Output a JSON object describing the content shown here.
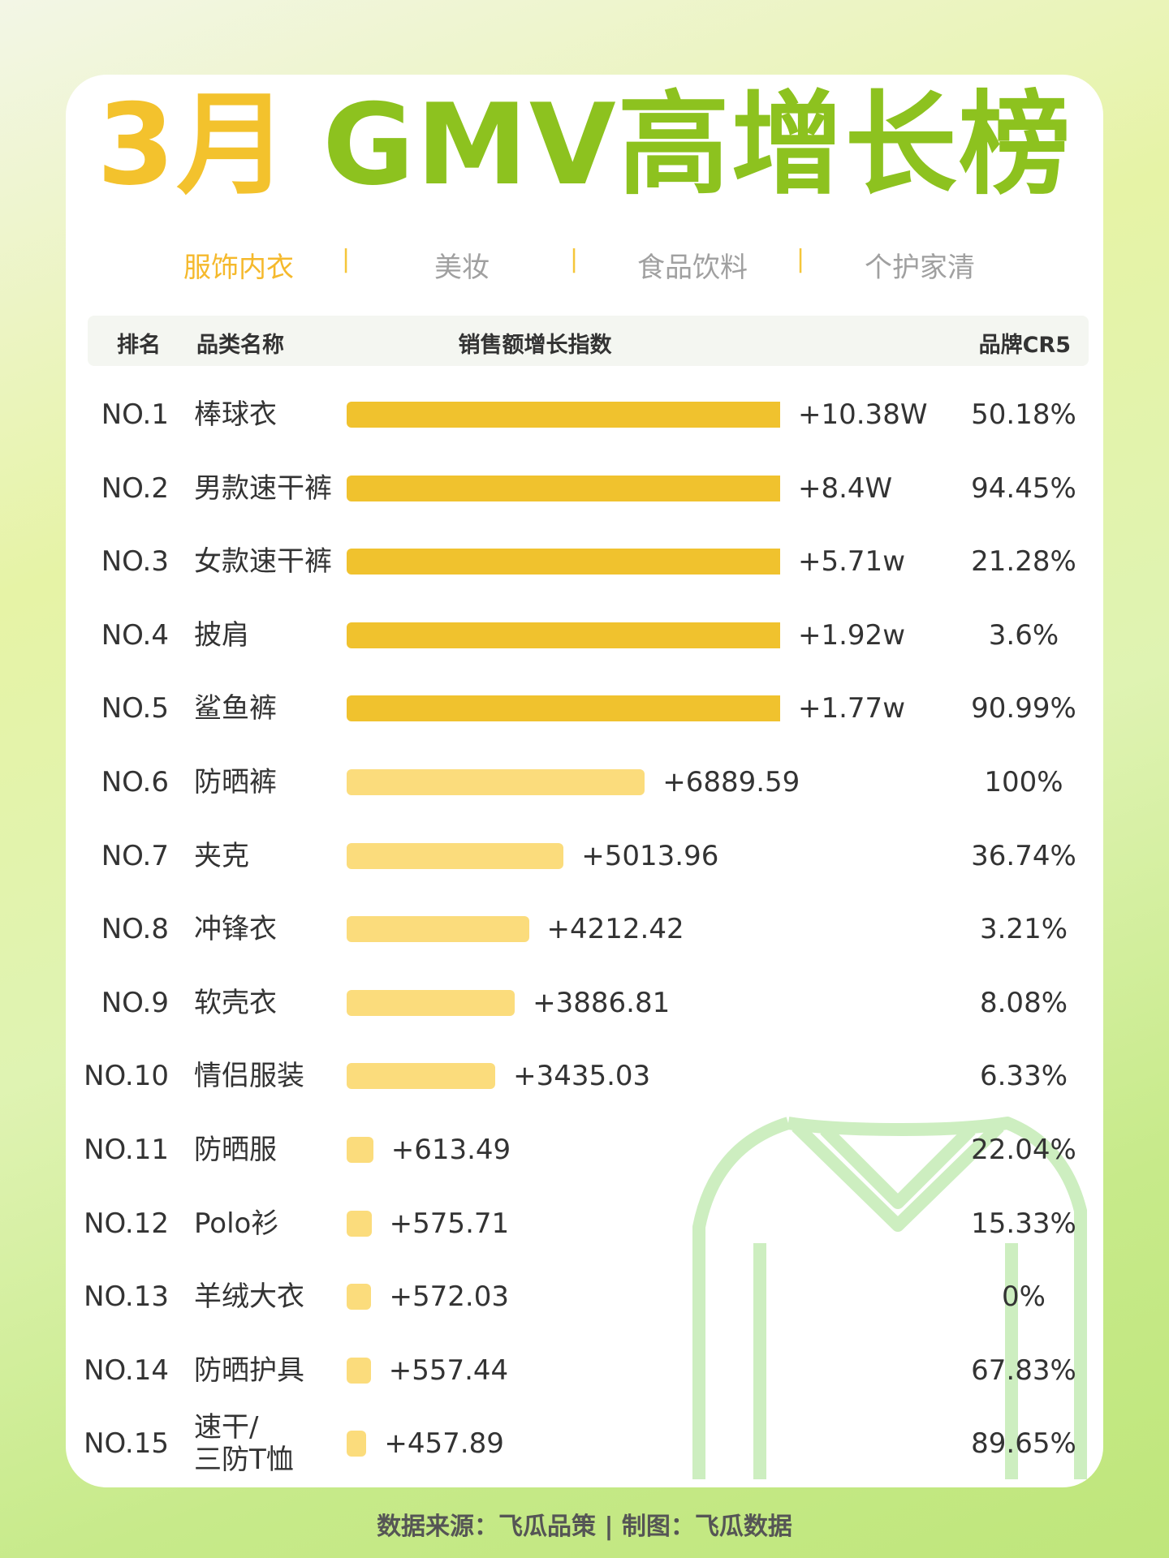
{
  "header": {
    "title_month": "3月",
    "title_main": "GMV高增长榜"
  },
  "tabs": {
    "items": [
      "服饰内衣",
      "美妆",
      "食品饮料",
      "个护家清"
    ],
    "separator": "|",
    "active_color": "#f5b92c"
  },
  "chart_data": {
    "type": "ranking-bar",
    "columns": [
      "排名",
      "品类名称",
      "销售额增长指数",
      "品牌CR5"
    ],
    "rows": [
      {
        "rank": "NO.1",
        "name": [
          "棒球衣"
        ],
        "growth": 103800,
        "growth_label": "+10.38W",
        "cr5": "50.18%",
        "color": "#f0c22e"
      },
      {
        "rank": "NO.2",
        "name": [
          "男款速干裤"
        ],
        "growth": 84000,
        "growth_label": "+8.4W",
        "cr5": "94.45%",
        "color": "#f0c22e"
      },
      {
        "rank": "NO.3",
        "name": [
          "女款速干裤"
        ],
        "growth": 57100,
        "growth_label": "+5.71w",
        "cr5": "21.28%",
        "color": "#f0c22e"
      },
      {
        "rank": "NO.4",
        "name": [
          "披肩"
        ],
        "growth": 19200,
        "growth_label": "+1.92w",
        "cr5": "3.6%",
        "color": "#f0c22e"
      },
      {
        "rank": "NO.5",
        "name": [
          "鲨鱼裤"
        ],
        "growth": 17700,
        "growth_label": "+1.77w",
        "cr5": "90.99%",
        "color": "#f0c22e"
      },
      {
        "rank": "NO.6",
        "name": [
          "防晒裤"
        ],
        "growth": 6889.59,
        "cr5": "100%",
        "color": "#fbdc7c"
      },
      {
        "rank": "NO.7",
        "name": [
          "夹克"
        ],
        "growth": 5013.96,
        "cr5": "36.74%",
        "color": "#fbdc7c"
      },
      {
        "rank": "NO.8",
        "name": [
          "冲锋衣"
        ],
        "growth": 4212.42,
        "cr5": "3.21%",
        "color": "#fbdc7c"
      },
      {
        "rank": "NO.9",
        "name": [
          "软壳衣"
        ],
        "growth": 3886.81,
        "cr5": "8.08%",
        "color": "#fbdc7c"
      },
      {
        "rank": "NO.10",
        "name": [
          "情侣服装"
        ],
        "growth": 3435.03,
        "cr5": "6.33%",
        "color": "#fbdc7c"
      },
      {
        "rank": "NO.11",
        "name": [
          "防晒服"
        ],
        "growth": 613.49,
        "cr5": "22.04%",
        "color": "#fbdc7c"
      },
      {
        "rank": "NO.12",
        "name": [
          "Polo衫"
        ],
        "growth": 575.71,
        "cr5": "15.33%",
        "color": "#fbdc7c"
      },
      {
        "rank": "NO.13",
        "name": [
          "羊绒大衣"
        ],
        "growth": 572.03,
        "cr5": "0%",
        "color": "#fbdc7c"
      },
      {
        "rank": "NO.14",
        "name": [
          "防晒护具"
        ],
        "growth": 557.44,
        "cr5": "67.83%",
        "color": "#fbdc7c"
      },
      {
        "rank": "NO.15",
        "name": [
          "速干/",
          "三防T恤"
        ],
        "growth": 457.89,
        "cr5": "89.65%",
        "color": "#fbdc7c"
      }
    ],
    "growth_prefix": "+"
  },
  "footer": {
    "source": "数据来源：飞瓜品策 | 制图：飞瓜数据"
  }
}
